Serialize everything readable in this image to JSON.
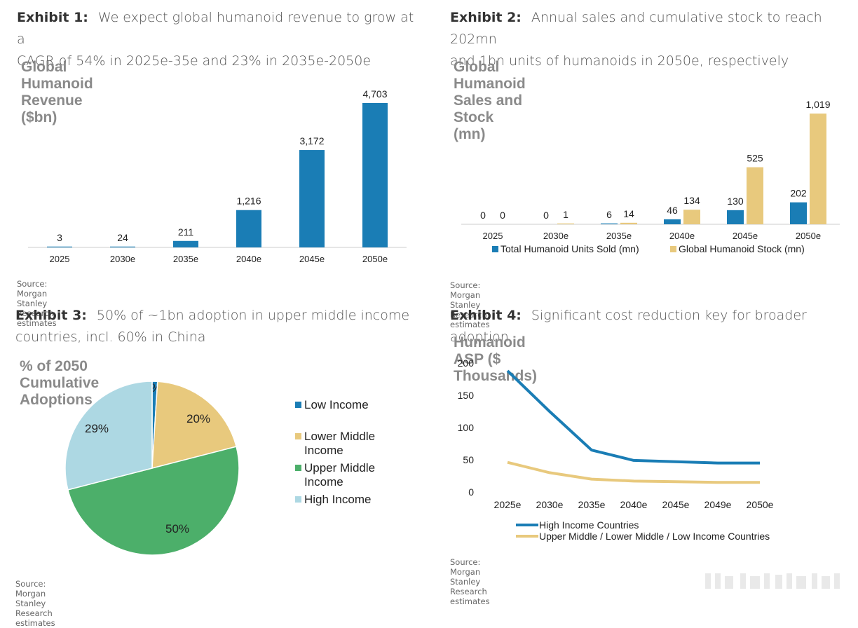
{
  "exhibits": [
    {
      "number": "Exhibit 1:",
      "headline_line1": "We expect global humanoid revenue to grow at a",
      "headline_line2": "CAGR of 54% in 2025e-35e and 23% in 2035e-2050e",
      "chart_title": "Global Humanoid Revenue ($bn)",
      "source": "Source: Morgan Stanley Research estimates"
    },
    {
      "number": "Exhibit 2:",
      "headline_line1": "Annual sales and cumulative stock to reach 202mn",
      "headline_line2": "and 1bn units of humanoids in 2050e, respectively",
      "chart_title": "Global Humanoid Sales and Stock (mn)",
      "source": "Source: Morgan Stanley Research estimates"
    },
    {
      "number": "Exhibit 3:",
      "headline_line1": "50% of ~1bn adoption in upper middle income",
      "headline_line2": "countries, incl. 60% in China",
      "chart_title": "% of 2050 Cumulative Adoptions",
      "source": "Source: Morgan Stanley Research estimates"
    },
    {
      "number": "Exhibit 4:",
      "headline_line1": "Significant cost reduction key for broader adoption",
      "headline_line2": "",
      "chart_title": "Humanoid ASP ($ Thousands)",
      "source": "Source: Morgan Stanley Research estimates"
    }
  ],
  "chart_data": [
    {
      "type": "bar",
      "title": "Global Humanoid Revenue ($bn)",
      "categories": [
        "2025",
        "2030e",
        "2035e",
        "2040e",
        "2045e",
        "2050e"
      ],
      "values": [
        3,
        24,
        211,
        1216,
        3172,
        4703
      ],
      "value_labels": [
        "3",
        "24",
        "211",
        "1,216",
        "3,172",
        "4,703"
      ],
      "ylim": [
        0,
        4703
      ],
      "color": "#1a7db5"
    },
    {
      "type": "bar",
      "title": "Global Humanoid Sales and Stock (mn)",
      "categories": [
        "2025",
        "2030e",
        "2035e",
        "2040e",
        "2045e",
        "2050e"
      ],
      "series": [
        {
          "name": "Total Humanoid Units Sold (mn)",
          "values": [
            0,
            0,
            6,
            46,
            130,
            202
          ],
          "value_labels": [
            "0",
            "0",
            "6",
            "46",
            "130",
            "202"
          ],
          "color": "#1a7db5"
        },
        {
          "name": "Global Humanoid Stock (mn)",
          "values": [
            0,
            1,
            14,
            134,
            525,
            1019
          ],
          "value_labels": [
            "0",
            "1",
            "14",
            "134",
            "525",
            "1,019"
          ],
          "color": "#e8c97d"
        }
      ],
      "ylim": [
        0,
        1019
      ],
      "legend_position": "bottom"
    },
    {
      "type": "pie",
      "title": "% of 2050 Cumulative Adoptions",
      "slices": [
        {
          "name": "Low Income",
          "value": 1,
          "label": "1%",
          "color": "#1a7db5"
        },
        {
          "name": "Lower Middle Income",
          "legend_lines": [
            "Lower Middle",
            "Income"
          ],
          "value": 20,
          "label": "20%",
          "color": "#e8c97d"
        },
        {
          "name": "Upper Middle Income",
          "legend_lines": [
            "Upper Middle",
            "Income"
          ],
          "value": 50,
          "label": "50%",
          "color": "#4caf6a"
        },
        {
          "name": "High Income",
          "value": 29,
          "label": "29%",
          "color": "#add8e3"
        }
      ],
      "legend_position": "right"
    },
    {
      "type": "line",
      "title": "Humanoid ASP ($ Thousands)",
      "x": [
        "2025e",
        "2030e",
        "2035e",
        "2040e",
        "2045e",
        "2049e",
        "2050e"
      ],
      "series": [
        {
          "name": "High Income Countries",
          "values": [
            188,
            125,
            65,
            49,
            47,
            45,
            45
          ],
          "color": "#1a7db5"
        },
        {
          "name": "Upper Middle / Lower Middle / Low Income Countries",
          "values": [
            46,
            30,
            20,
            17,
            16,
            15,
            15
          ],
          "color": "#e8c97d"
        }
      ],
      "ylim": [
        0,
        200
      ],
      "yticks": [
        0,
        50,
        100,
        150,
        200
      ],
      "legend_position": "bottom-left"
    }
  ]
}
